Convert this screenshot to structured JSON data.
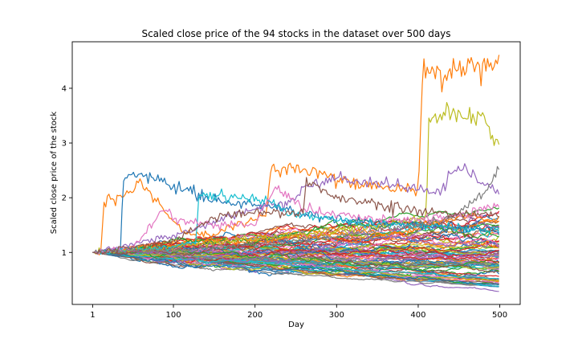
{
  "chart_data": {
    "type": "line",
    "title": "Scaled close price of the 94 stocks in the dataset over 500 days",
    "xlabel": "Day",
    "ylabel": "Scaled close price of the stock",
    "xlim": [
      -24,
      525
    ],
    "ylim": [
      0.05,
      4.85
    ],
    "xticks": [
      1,
      100,
      200,
      300,
      400,
      500
    ],
    "yticks": [
      1,
      2,
      3,
      4
    ],
    "grid": false,
    "legend": "none",
    "series_count": 94,
    "num_days": 500,
    "colors": [
      "#1f77b4",
      "#ff7f0e",
      "#2ca02c",
      "#d62728",
      "#9467bd",
      "#8c564b",
      "#e377c2",
      "#7f7f7f",
      "#bcbd22",
      "#17becf"
    ],
    "highlighted_series": [
      {
        "color": "#ff7f0e",
        "x": [
          1,
          12,
          14,
          20,
          28,
          35,
          45,
          60,
          75,
          90,
          110,
          140,
          200,
          213,
          220,
          240,
          260,
          300,
          350,
          400,
          406,
          410,
          420,
          440,
          460,
          480,
          495,
          500
        ],
        "values": [
          1,
          1.02,
          1.85,
          2.05,
          1.9,
          2.05,
          2.1,
          2.3,
          2.05,
          1.75,
          1.4,
          1.3,
          1.6,
          1.65,
          2.55,
          2.5,
          2.5,
          2.35,
          2.2,
          2.15,
          4.38,
          4.3,
          4.25,
          4.3,
          4.35,
          4.45,
          4.5,
          4.62
        ]
      },
      {
        "color": "#bcbd22",
        "x": [
          1,
          100,
          200,
          300,
          400,
          410,
          413,
          420,
          440,
          460,
          480,
          490,
          500
        ],
        "values": [
          1,
          1.1,
          1.25,
          1.4,
          1.6,
          1.65,
          3.45,
          3.4,
          3.6,
          3.45,
          3.5,
          3.1,
          2.9
        ]
      },
      {
        "color": "#1f77b4",
        "x": [
          1,
          35,
          38,
          45,
          60,
          80,
          100,
          120,
          130,
          145,
          170,
          200,
          230,
          260,
          300,
          350,
          400,
          450,
          500
        ],
        "values": [
          1,
          1.05,
          2.25,
          2.4,
          2.45,
          2.35,
          2.2,
          2.15,
          2.05,
          1.95,
          1.9,
          1.9,
          1.8,
          1.7,
          1.6,
          1.55,
          1.5,
          1.45,
          1.4
        ]
      },
      {
        "color": "#9467bd",
        "x": [
          1,
          100,
          200,
          240,
          260,
          300,
          350,
          400,
          430,
          440,
          460,
          480,
          500
        ],
        "values": [
          1,
          1.3,
          1.8,
          1.9,
          2.2,
          2.35,
          2.25,
          2.15,
          2.1,
          2.45,
          2.5,
          2.3,
          2.1
        ]
      },
      {
        "color": "#17becf",
        "x": [
          1,
          100,
          128,
          131,
          150,
          180,
          210,
          250,
          300,
          350,
          400,
          450,
          500
        ],
        "values": [
          1,
          1.1,
          1.2,
          2.0,
          2.05,
          2.0,
          1.95,
          1.7,
          1.6,
          1.5,
          1.5,
          1.45,
          1.4
        ]
      },
      {
        "color": "#e377c2",
        "x": [
          1,
          50,
          70,
          85,
          95,
          100,
          150,
          200,
          225,
          240,
          260,
          300,
          350,
          400,
          450,
          500
        ],
        "values": [
          1,
          1.1,
          1.45,
          1.75,
          1.8,
          1.6,
          1.5,
          1.5,
          2.2,
          2.05,
          1.8,
          1.7,
          1.6,
          1.6,
          1.7,
          1.9
        ]
      },
      {
        "color": "#7f7f7f",
        "x": [
          1,
          100,
          200,
          300,
          400,
          450,
          480,
          495,
          500
        ],
        "values": [
          1,
          1.05,
          1.15,
          1.3,
          1.5,
          1.7,
          2.1,
          2.4,
          2.55
        ]
      },
      {
        "color": "#8c564b",
        "x": [
          1,
          100,
          145,
          150,
          200,
          260,
          262,
          300,
          350,
          400,
          450,
          500
        ],
        "values": [
          1,
          1.2,
          1.6,
          1.65,
          1.75,
          1.7,
          2.35,
          2.0,
          1.9,
          1.75,
          1.7,
          1.7
        ]
      }
    ]
  }
}
